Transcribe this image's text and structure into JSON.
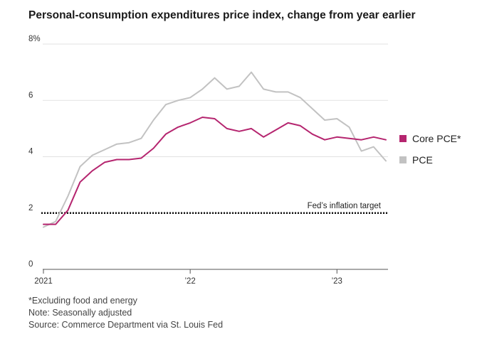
{
  "chart_data": {
    "type": "line",
    "title": "Personal-consumption expenditures price index, change from year earlier",
    "ylim": [
      0,
      8
    ],
    "y_ticks": [
      "8%",
      "6",
      "4",
      "2",
      "0"
    ],
    "y_tick_values": [
      8,
      6,
      4,
      2,
      0
    ],
    "x_tick_labels": [
      "2021",
      "’22",
      "’23"
    ],
    "x": [
      "2021-01",
      "2021-02",
      "2021-03",
      "2021-04",
      "2021-05",
      "2021-06",
      "2021-07",
      "2021-08",
      "2021-09",
      "2021-10",
      "2021-11",
      "2021-12",
      "2022-01",
      "2022-02",
      "2022-03",
      "2022-04",
      "2022-05",
      "2022-06",
      "2022-07",
      "2022-08",
      "2022-09",
      "2022-10",
      "2022-11",
      "2022-12",
      "2023-01",
      "2023-02",
      "2023-03",
      "2023-04",
      "2023-05"
    ],
    "series": [
      {
        "name": "Core PCE*",
        "color": "#b5256f",
        "values": [
          1.6,
          1.6,
          2.1,
          3.1,
          3.5,
          3.8,
          3.9,
          3.9,
          3.95,
          4.3,
          4.8,
          5.05,
          5.2,
          5.4,
          5.35,
          5.0,
          4.9,
          5.0,
          4.7,
          4.95,
          5.2,
          5.1,
          4.8,
          4.6,
          4.7,
          4.65,
          4.6,
          4.7,
          4.6
        ]
      },
      {
        "name": "PCE",
        "color": "#c2c2c2",
        "values": [
          1.5,
          1.7,
          2.6,
          3.65,
          4.05,
          4.25,
          4.45,
          4.5,
          4.65,
          5.3,
          5.85,
          6.0,
          6.1,
          6.4,
          6.8,
          6.4,
          6.5,
          7.0,
          6.4,
          6.3,
          6.3,
          6.1,
          5.7,
          5.3,
          5.35,
          5.05,
          4.2,
          4.35,
          3.85
        ]
      }
    ],
    "reference_line": {
      "label": "Fed’s inflation target",
      "value": 2
    },
    "legend_placement": "right",
    "grid": true
  },
  "notes": {
    "footnote": "*Excluding food and energy",
    "adjustment": "Note: Seasonally adjusted",
    "source": "Source: Commerce Department via St. Louis Fed"
  }
}
